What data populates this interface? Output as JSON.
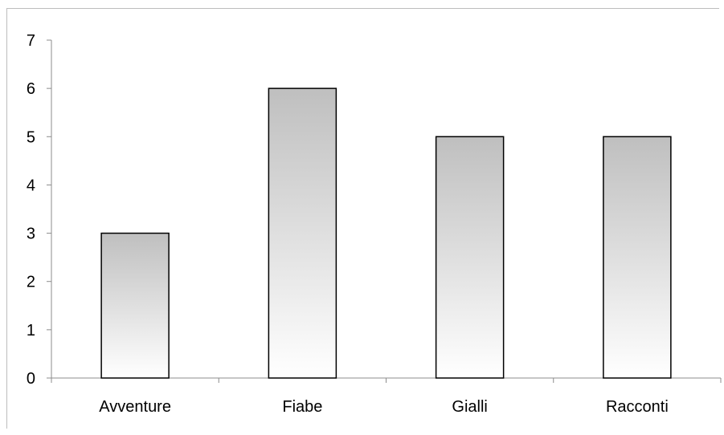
{
  "chart_data": {
    "type": "bar",
    "categories": [
      "Avventure",
      "Fiabe",
      "Gialli",
      "Racconti"
    ],
    "values": [
      3,
      6,
      5,
      5
    ],
    "title": "",
    "xlabel": "",
    "ylabel": "",
    "ylim": [
      0,
      7
    ],
    "yticks": [
      "0",
      "1",
      "2",
      "3",
      "4",
      "5",
      "6",
      "7"
    ],
    "grid": false,
    "legend": "none",
    "bar_fill_top": "#bfbfbf",
    "bar_fill_bottom": "#ffffff",
    "bar_stroke": "#000000",
    "axis_color": "#8c8c8c"
  }
}
